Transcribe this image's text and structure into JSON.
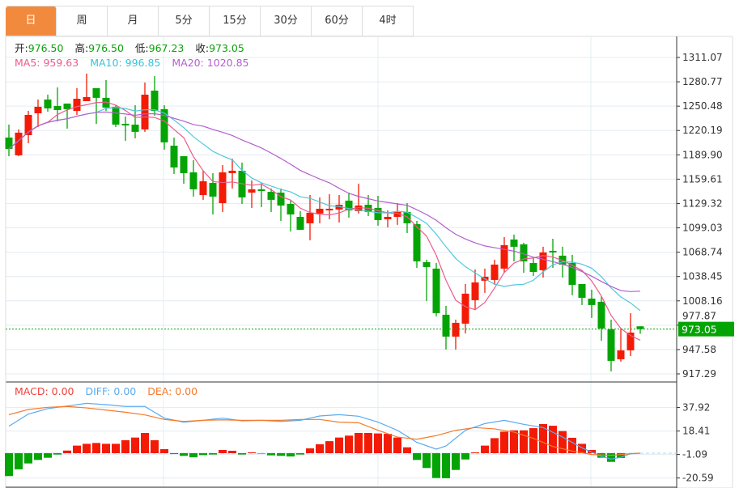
{
  "tabs": [
    {
      "label": "日",
      "active": true
    },
    {
      "label": "周"
    },
    {
      "label": "月"
    },
    {
      "label": "5分"
    },
    {
      "label": "15分"
    },
    {
      "label": "30分"
    },
    {
      "label": "60分"
    },
    {
      "label": "4时"
    }
  ],
  "ohlc_info": {
    "open_label": "开:",
    "open": "976.50",
    "high_label": "高:",
    "high": "976.50",
    "low_label": "低:",
    "low": "967.23",
    "close_label": "收:",
    "close": "973.05"
  },
  "ma_info": {
    "ma5": "MA5: 959.63",
    "ma10": "MA10: 996.85",
    "ma20": "MA20: 1020.85"
  },
  "macd_info": {
    "macd": "MACD: 0.00",
    "diff": "DIFF: 0.00",
    "dea": "DEA: 0.00"
  },
  "colors": {
    "up": "#f31b06",
    "down": "#05a405",
    "ma5": "#ec5b8c",
    "ma10": "#4fc8dc",
    "ma20": "#b35fcf",
    "diff": "#5aabf0",
    "dea": "#f57a2b",
    "active_tab": "#f28a3d",
    "last_price_bg": "#05a405"
  },
  "chart_data": {
    "type": "candlestick",
    "price_axis": {
      "ticks": [
        "1311.07",
        "1280.77",
        "1250.48",
        "1220.19",
        "1189.90",
        "1159.61",
        "1129.32",
        "1099.03",
        "1068.74",
        "1038.45",
        "1008.16",
        "977.87",
        "947.58",
        "917.29"
      ],
      "range": [
        917.29,
        1311.07
      ]
    },
    "last_price": "973.05",
    "candles": [
      [
        1211.4,
        1227.5,
        1188.2,
        1197.3
      ],
      [
        1189.3,
        1221.5,
        1188.2,
        1217.5
      ],
      [
        1214.4,
        1244.6,
        1204.4,
        1239.6
      ],
      [
        1241.6,
        1258.7,
        1224.5,
        1249.7
      ],
      [
        1258.7,
        1264.8,
        1243.6,
        1247.7
      ],
      [
        1250.7,
        1273.8,
        1231.5,
        1245.6
      ],
      [
        1253.7,
        1253.7,
        1222.5,
        1246.7
      ],
      [
        1244.6,
        1272.8,
        1239.6,
        1259.7
      ],
      [
        1256.7,
        1291.0,
        1256.7,
        1261.8
      ],
      [
        1272.8,
        1272.8,
        1228.5,
        1260.8
      ],
      [
        1260.8,
        1282.9,
        1244.6,
        1248.7
      ],
      [
        1249.7,
        1251.7,
        1224.5,
        1227.5
      ],
      [
        1228.5,
        1237.6,
        1207.4,
        1226.5
      ],
      [
        1227.5,
        1251.7,
        1210.4,
        1218.5
      ],
      [
        1221.5,
        1279.9,
        1218.5,
        1264.8
      ],
      [
        1269.8,
        1287.9,
        1238.6,
        1244.6
      ],
      [
        1246.7,
        1251.7,
        1196.3,
        1205.4
      ],
      [
        1201.3,
        1211.4,
        1166.1,
        1174.2
      ],
      [
        1188.2,
        1188.2,
        1154.0,
        1167.1
      ],
      [
        1168.1,
        1183.2,
        1137.9,
        1147.0
      ],
      [
        1139.9,
        1170.1,
        1133.9,
        1157.0
      ],
      [
        1155.0,
        1167.1,
        1115.7,
        1137.9
      ],
      [
        1129.8,
        1177.2,
        1118.8,
        1168.1
      ],
      [
        1167.1,
        1185.2,
        1148.0,
        1170.1
      ],
      [
        1170.1,
        1180.2,
        1128.8,
        1136.9
      ],
      [
        1142.9,
        1158.0,
        1123.8,
        1147.0
      ],
      [
        1147.0,
        1155.0,
        1124.8,
        1144.9
      ],
      [
        1143.9,
        1148.0,
        1118.8,
        1133.9
      ],
      [
        1142.9,
        1148.0,
        1107.7,
        1126.8
      ],
      [
        1128.8,
        1132.9,
        1094.6,
        1115.7
      ],
      [
        1112.7,
        1119.8,
        1096.6,
        1096.6
      ],
      [
        1104.7,
        1139.9,
        1083.5,
        1117.8
      ],
      [
        1116.8,
        1136.9,
        1104.7,
        1122.8
      ],
      [
        1120.8,
        1140.9,
        1109.7,
        1122.8
      ],
      [
        1121.8,
        1139.9,
        1105.7,
        1127.8
      ],
      [
        1132.9,
        1142.9,
        1111.7,
        1120.8
      ],
      [
        1119.8,
        1154.0,
        1116.8,
        1126.8
      ],
      [
        1127.8,
        1139.9,
        1113.7,
        1118.8
      ],
      [
        1123.8,
        1138.9,
        1101.7,
        1108.7
      ],
      [
        1109.7,
        1120.8,
        1099.6,
        1112.7
      ],
      [
        1112.7,
        1129.8,
        1102.7,
        1118.8
      ],
      [
        1118.8,
        1129.8,
        1092.6,
        1104.7
      ],
      [
        1103.7,
        1107.7,
        1049.3,
        1057.3
      ],
      [
        1056.3,
        1059.4,
        1008.0,
        1050.3
      ],
      [
        1048.3,
        1055.3,
        988.9,
        992.9
      ],
      [
        990.9,
        1002.0,
        947.6,
        963.7
      ],
      [
        963.7,
        984.8,
        947.6,
        980.8
      ],
      [
        979.8,
        1029.1,
        967.7,
        1017.1
      ],
      [
        1009.0,
        1047.3,
        997.9,
        1031.1
      ],
      [
        1033.2,
        1048.3,
        1018.1,
        1038.2
      ],
      [
        1034.2,
        1059.4,
        1028.1,
        1053.3
      ],
      [
        1048.3,
        1087.5,
        1043.2,
        1077.5
      ],
      [
        1084.5,
        1090.6,
        1057.3,
        1075.5
      ],
      [
        1078.5,
        1080.5,
        1043.2,
        1057.3
      ],
      [
        1055.3,
        1061.4,
        1039.2,
        1044.2
      ],
      [
        1046.3,
        1075.5,
        1037.2,
        1068.4
      ],
      [
        1070.4,
        1085.5,
        1049.3,
        1068.4
      ],
      [
        1064.4,
        1075.5,
        1037.2,
        1053.3
      ],
      [
        1055.3,
        1065.4,
        1015.1,
        1028.1
      ],
      [
        1029.1,
        1029.1,
        1003.0,
        1012.0
      ],
      [
        1011.0,
        1022.1,
        986.9,
        1003.0
      ],
      [
        1007.0,
        1014.0,
        958.6,
        973.8
      ],
      [
        972.8,
        984.8,
        920.4,
        933.5
      ],
      [
        935.5,
        973.8,
        932.5,
        946.6
      ],
      [
        946.6,
        992.9,
        939.5,
        968.7
      ],
      [
        976.5,
        976.5,
        967.23,
        973.05
      ]
    ],
    "ma_periods": [
      5,
      10,
      20
    ],
    "macd_axis": {
      "ticks": [
        "37.92",
        "18.41",
        "-1.09",
        "-20.59"
      ],
      "values": [
        37.92,
        18.41,
        -1.09,
        -20.59
      ]
    },
    "macd_hist": [
      -19,
      -13.4,
      -8.5,
      -5.6,
      -3.8,
      -1.1,
      2.2,
      6.3,
      7.8,
      8.5,
      7.8,
      7.8,
      10.8,
      13,
      16.8,
      10.8,
      3.4,
      -0.7,
      -2.2,
      -3.4,
      -1.6,
      -1.1,
      2.7,
      2,
      -1.1,
      0.7,
      -0.4,
      -1.8,
      -2.2,
      -2.7,
      -1.1,
      4,
      7.4,
      10,
      13,
      14.6,
      16.8,
      16.8,
      16.4,
      16.1,
      13,
      4.9,
      -5.6,
      -12.3,
      -20.6,
      -20.8,
      -13.9,
      -5.2,
      0.7,
      6.3,
      12.5,
      17.9,
      19,
      19,
      20.8,
      24.2,
      22.8,
      18.4,
      12.8,
      7.8,
      2.7,
      -3.8,
      -7.2,
      -4,
      0,
      0
    ],
    "diff": [
      [
        0,
        22.4
      ],
      [
        2,
        32.5
      ],
      [
        4,
        37
      ],
      [
        6,
        39.2
      ],
      [
        8,
        41.4
      ],
      [
        10,
        40.3
      ],
      [
        12,
        38.8
      ],
      [
        14,
        38.8
      ],
      [
        16,
        29.1
      ],
      [
        18,
        25.8
      ],
      [
        20,
        27.3
      ],
      [
        22,
        29.1
      ],
      [
        24,
        26.9
      ],
      [
        26,
        27.3
      ],
      [
        28,
        26.4
      ],
      [
        30,
        27.3
      ],
      [
        32,
        30.9
      ],
      [
        34,
        32
      ],
      [
        36,
        30.7
      ],
      [
        38,
        25.8
      ],
      [
        40,
        19
      ],
      [
        42,
        9
      ],
      [
        44,
        3.4
      ],
      [
        45,
        6
      ],
      [
        47,
        19
      ],
      [
        49,
        24.6
      ],
      [
        51,
        27.3
      ],
      [
        53,
        24
      ],
      [
        55,
        21.3
      ],
      [
        57,
        13.4
      ],
      [
        59,
        4.5
      ],
      [
        61,
        -2.7
      ],
      [
        62,
        -4.9
      ],
      [
        63,
        -3.4
      ],
      [
        64,
        -0.4
      ],
      [
        65,
        0
      ]
    ],
    "dea": [
      [
        0,
        32
      ],
      [
        2,
        36.3
      ],
      [
        4,
        38.1
      ],
      [
        6,
        38.8
      ],
      [
        8,
        37.6
      ],
      [
        10,
        35.8
      ],
      [
        12,
        34
      ],
      [
        14,
        31.8
      ],
      [
        16,
        28
      ],
      [
        18,
        26.4
      ],
      [
        20,
        27.3
      ],
      [
        22,
        27.7
      ],
      [
        24,
        27.3
      ],
      [
        26,
        27.3
      ],
      [
        28,
        27.3
      ],
      [
        30,
        28
      ],
      [
        32,
        28
      ],
      [
        34,
        25.8
      ],
      [
        36,
        25.3
      ],
      [
        38,
        19
      ],
      [
        40,
        13.4
      ],
      [
        42,
        11.6
      ],
      [
        44,
        14.6
      ],
      [
        46,
        19
      ],
      [
        48,
        21.3
      ],
      [
        50,
        20.2
      ],
      [
        52,
        17.5
      ],
      [
        54,
        12.3
      ],
      [
        56,
        5.6
      ],
      [
        58,
        1.8
      ],
      [
        60,
        -1.1
      ],
      [
        62,
        -1.8
      ],
      [
        64,
        -0.4
      ],
      [
        65,
        0
      ]
    ]
  }
}
